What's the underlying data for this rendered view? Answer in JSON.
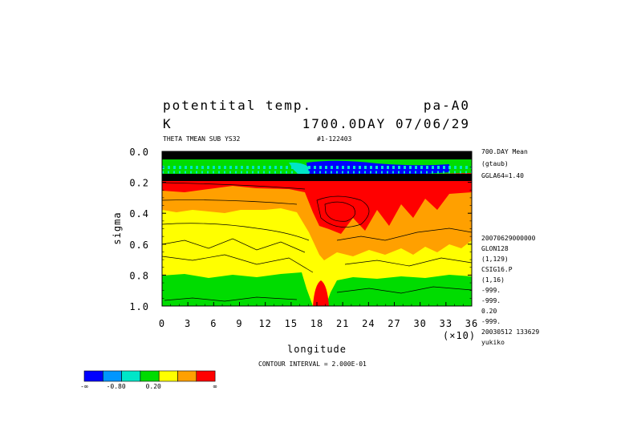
{
  "chart_data": {
    "type": "heatmap",
    "title_line1_left": "potentital temp.",
    "title_line1_right": "pa-A0",
    "title_line2_left": "K",
    "title_line2_right": "1700.0DAY 07/06/29",
    "subtitle_left": "THETA TMEAN SUB YS32",
    "subtitle_right": "#1-122403",
    "xlabel": "longitude",
    "ylabel": "sigma",
    "x_multiplier": "(×10)",
    "xticks": [
      "0",
      "3",
      "6",
      "9",
      "12",
      "15",
      "18",
      "21",
      "24",
      "27",
      "30",
      "33",
      "36"
    ],
    "yticks": [
      "0.0",
      "0.2",
      "0.4",
      "0.6",
      "0.8",
      "1.0"
    ],
    "xlim": [
      0,
      36
    ],
    "ylim": [
      0.0,
      1.0
    ],
    "y_inverted": true,
    "contour_interval": "CONTOUR INTERVAL = 2.000E-01",
    "side_info_top": [
      "700.DAY Mean",
      "(gtaub)",
      "GGLA64=1.40"
    ],
    "side_info_bottom": [
      "20070629000000",
      "GLON128",
      "(1,129)",
      "CSIG16.P",
      "(1,16)",
      "-999.",
      "-999.",
      "0.20",
      "-999.",
      "20030512 133629",
      "yukiko"
    ],
    "colorbar": {
      "colors": [
        "#0000ff",
        "#0096ff",
        "#00e6c8",
        "#00dc00",
        "#ffff00",
        "#ffa000",
        "#ff0000"
      ],
      "labels": [
        "-∞",
        "-0.80",
        "0.20",
        "∞"
      ]
    }
  }
}
